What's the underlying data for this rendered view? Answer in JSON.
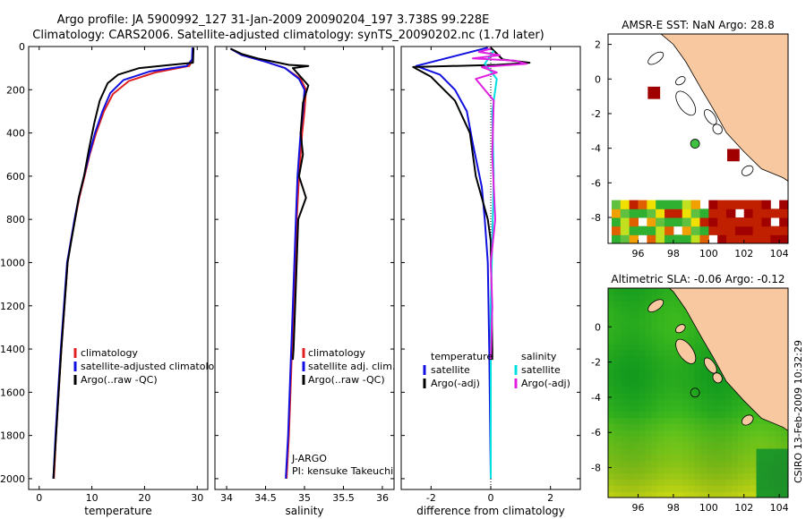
{
  "header": {
    "line1": "Argo profile: JA 5900992_127 31-Jan-2009 20090204_197 3.738S 99.228E",
    "line2": "Climatology: CARS2006. Satellite-adjusted climatology: synTS_20090202.nc (1.7d later)"
  },
  "side_label": "CSIRO 13-Feb-2009 10:32:29",
  "colors": {
    "climatology": "#e02020",
    "satellite": "#1010e0",
    "argo": "#000000",
    "sat_sal": "#00e0e0",
    "argo_sal": "#e020e0",
    "land": "#f8c8a0",
    "sst_red": "#a00000",
    "sla_green": "#40c040"
  },
  "chart_data": [
    {
      "type": "line",
      "name": "temperature-profile",
      "xlabel": "temperature",
      "ylabel": "",
      "xlim": [
        -2,
        32
      ],
      "ylim": [
        2050,
        0
      ],
      "y_reversed": true,
      "xticks": [
        0,
        10,
        20,
        30
      ],
      "yticks": [
        0,
        200,
        400,
        600,
        800,
        1000,
        1200,
        1400,
        1600,
        1800,
        2000
      ],
      "legend": [
        "climatology",
        "satellite-adjusted climatology",
        "Argo(..raw -QC)"
      ],
      "series": [
        {
          "name": "climatology",
          "color": "#e02020",
          "points": [
            [
              29.2,
              5
            ],
            [
              29.1,
              60
            ],
            [
              28.5,
              90
            ],
            [
              22,
              120
            ],
            [
              17,
              160
            ],
            [
              14,
              220
            ],
            [
              12.3,
              300
            ],
            [
              10.8,
              400
            ],
            [
              9.6,
              500
            ],
            [
              8.6,
              600
            ],
            [
              7.6,
              700
            ],
            [
              6.8,
              800
            ],
            [
              6,
              900
            ],
            [
              5.4,
              1000
            ],
            [
              4.8,
              1200
            ],
            [
              4.2,
              1400
            ],
            [
              3.7,
              1600
            ],
            [
              3.2,
              1800
            ],
            [
              2.8,
              2000
            ]
          ]
        },
        {
          "name": "satellite-adjusted climatology",
          "color": "#1010e0",
          "points": [
            [
              29.1,
              5
            ],
            [
              29,
              60
            ],
            [
              28,
              90
            ],
            [
              21,
              115
            ],
            [
              16,
              155
            ],
            [
              13.5,
              215
            ],
            [
              12,
              300
            ],
            [
              10.6,
              400
            ],
            [
              9.5,
              500
            ],
            [
              8.5,
              600
            ],
            [
              7.5,
              700
            ],
            [
              6.7,
              800
            ],
            [
              6,
              900
            ],
            [
              5.3,
              1000
            ],
            [
              4.7,
              1200
            ],
            [
              4.1,
              1400
            ],
            [
              3.6,
              1600
            ],
            [
              3.1,
              1800
            ],
            [
              2.7,
              2000
            ]
          ]
        },
        {
          "name": "Argo(..raw -QC)",
          "color": "#000000",
          "points": [
            [
              29.3,
              5
            ],
            [
              29.2,
              75
            ],
            [
              25,
              85
            ],
            [
              19,
              100
            ],
            [
              15,
              130
            ],
            [
              13,
              170
            ],
            [
              11.5,
              250
            ],
            [
              10.5,
              350
            ],
            [
              9.4,
              480
            ],
            [
              8.5,
              600
            ],
            [
              7.5,
              700
            ],
            [
              6.8,
              800
            ],
            [
              6.1,
              900
            ],
            [
              5.4,
              1000
            ],
            [
              4.8,
              1200
            ],
            [
              4.2,
              1400
            ],
            [
              3.7,
              1600
            ],
            [
              3.2,
              1800
            ],
            [
              2.7,
              2000
            ]
          ]
        }
      ]
    },
    {
      "type": "line",
      "name": "salinity-profile",
      "xlabel": "salinity",
      "ylabel": "",
      "xlim": [
        33.85,
        36.15
      ],
      "ylim": [
        2050,
        0
      ],
      "y_reversed": true,
      "xticks": [
        34,
        34.5,
        35,
        35.5,
        36
      ],
      "xtick_labels": [
        "34",
        "34.5",
        "35",
        "35.5",
        "36"
      ],
      "legend": [
        "climatology",
        "satellite adj. clim.",
        "Argo(..raw -QC)"
      ],
      "annotation": [
        "J-ARGO",
        "PI: kensuke Takeuchi"
      ],
      "series": [
        {
          "name": "climatology",
          "color": "#e02020",
          "points": [
            [
              34.05,
              10
            ],
            [
              34.2,
              40
            ],
            [
              34.5,
              70
            ],
            [
              34.75,
              100
            ],
            [
              34.95,
              150
            ],
            [
              35.02,
              200
            ],
            [
              35.0,
              300
            ],
            [
              34.97,
              400
            ],
            [
              34.95,
              500
            ],
            [
              34.93,
              600
            ],
            [
              34.9,
              800
            ],
            [
              34.88,
              1000
            ],
            [
              34.86,
              1200
            ],
            [
              34.83,
              1500
            ],
            [
              34.8,
              1800
            ],
            [
              34.77,
              2000
            ]
          ]
        },
        {
          "name": "satellite adj. clim.",
          "color": "#1010e0",
          "points": [
            [
              34.05,
              10
            ],
            [
              34.2,
              40
            ],
            [
              34.5,
              70
            ],
            [
              34.75,
              100
            ],
            [
              34.93,
              150
            ],
            [
              35.0,
              200
            ],
            [
              34.98,
              300
            ],
            [
              34.95,
              400
            ],
            [
              34.93,
              500
            ],
            [
              34.91,
              600
            ],
            [
              34.89,
              800
            ],
            [
              34.87,
              1000
            ],
            [
              34.85,
              1200
            ],
            [
              34.82,
              1500
            ],
            [
              34.79,
              1800
            ],
            [
              34.76,
              2000
            ]
          ]
        },
        {
          "name": "Argo(..raw -QC)",
          "color": "#000000",
          "points": [
            [
              34.05,
              10
            ],
            [
              34.2,
              35
            ],
            [
              34.4,
              55
            ],
            [
              34.6,
              70
            ],
            [
              34.8,
              85
            ],
            [
              35.05,
              90
            ],
            [
              34.85,
              100
            ],
            [
              34.95,
              140
            ],
            [
              35.05,
              180
            ],
            [
              34.98,
              260
            ],
            [
              34.95,
              400
            ],
            [
              34.98,
              500
            ],
            [
              34.93,
              600
            ],
            [
              35.02,
              700
            ],
            [
              34.92,
              800
            ],
            [
              34.9,
              1000
            ],
            [
              34.88,
              1200
            ],
            [
              34.86,
              1400
            ],
            [
              34.85,
              1450
            ]
          ]
        }
      ]
    },
    {
      "type": "line",
      "name": "difference-from-climatology",
      "xlabel": "difference from climatology",
      "ylabel": "",
      "xlim": [
        -3,
        3
      ],
      "ylim": [
        2050,
        0
      ],
      "y_reversed": true,
      "xticks": [
        -2,
        0,
        2
      ],
      "legend_left": [
        "temperature",
        "satellite",
        "Argo(-adj)"
      ],
      "legend_right": [
        "salinity",
        "satellite",
        "Argo(-adj)"
      ],
      "series": [
        {
          "name": "temperature satellite",
          "color": "#1010e0",
          "points": [
            [
              -0.1,
              5
            ],
            [
              -2.5,
              90
            ],
            [
              -1.7,
              130
            ],
            [
              -1.2,
              200
            ],
            [
              -0.8,
              300
            ],
            [
              -0.6,
              450
            ],
            [
              -0.3,
              650
            ],
            [
              -0.2,
              800
            ],
            [
              -0.1,
              1000
            ],
            [
              -0.05,
              1400
            ],
            [
              0,
              2000
            ]
          ]
        },
        {
          "name": "temperature Argo(-adj)",
          "color": "#000000",
          "points": [
            [
              0,
              5
            ],
            [
              0.4,
              60
            ],
            [
              1.3,
              75
            ],
            [
              0.2,
              85
            ],
            [
              -2.6,
              95
            ],
            [
              -2.0,
              140
            ],
            [
              -1.2,
              250
            ],
            [
              -0.7,
              400
            ],
            [
              -0.6,
              500
            ],
            [
              -0.5,
              600
            ],
            [
              -0.3,
              700
            ],
            [
              -0.1,
              800
            ],
            [
              0,
              900
            ],
            [
              0.05,
              1400
            ],
            [
              0.05,
              1450
            ]
          ]
        },
        {
          "name": "salinity satellite",
          "color": "#00e0e0",
          "points": [
            [
              0.1,
              20
            ],
            [
              -0.2,
              80
            ],
            [
              0.2,
              150
            ],
            [
              0.05,
              300
            ],
            [
              0.1,
              600
            ],
            [
              0.05,
              900
            ],
            [
              0,
              1200
            ],
            [
              0,
              2000
            ]
          ]
        },
        {
          "name": "salinity Argo(-adj)",
          "color": "#e020e0",
          "points": [
            [
              0,
              10
            ],
            [
              -0.4,
              25
            ],
            [
              0.3,
              40
            ],
            [
              -0.6,
              55
            ],
            [
              0.8,
              65
            ],
            [
              1.2,
              80
            ],
            [
              -0.3,
              95
            ],
            [
              0.2,
              120
            ],
            [
              -0.5,
              150
            ],
            [
              0.1,
              250
            ],
            [
              0.05,
              500
            ],
            [
              0.15,
              800
            ],
            [
              0,
              1000
            ],
            [
              0.05,
              1200
            ],
            [
              0,
              1450
            ]
          ]
        }
      ]
    },
    {
      "type": "heatmap",
      "name": "amsr-e-sst-map",
      "title": "AMSR-E SST: NaN Argo: 28.8",
      "xlim": [
        94.3,
        104.5
      ],
      "ylim": [
        -9.5,
        2.6
      ],
      "xticks": [
        96,
        98,
        100,
        102,
        104
      ],
      "yticks": [
        2,
        0,
        -2,
        -4,
        -6,
        -8
      ],
      "argo_position": [
        99.228,
        -3.738
      ],
      "argo_marker_color": "#40c040",
      "red_squares": [
        [
          96.9,
          -0.8
        ],
        [
          101.4,
          -4.4
        ]
      ]
    },
    {
      "type": "heatmap",
      "name": "altimetric-sla-map",
      "title": "Altimetric SLA: -0.06 Argo: -0.12",
      "xlim": [
        94.3,
        104.5
      ],
      "ylim": [
        -9.7,
        2.2
      ],
      "xticks": [
        96,
        98,
        100,
        102,
        104
      ],
      "yticks": [
        0,
        -2,
        -4,
        -6,
        -8
      ],
      "argo_position": [
        99.228,
        -3.738
      ]
    }
  ]
}
